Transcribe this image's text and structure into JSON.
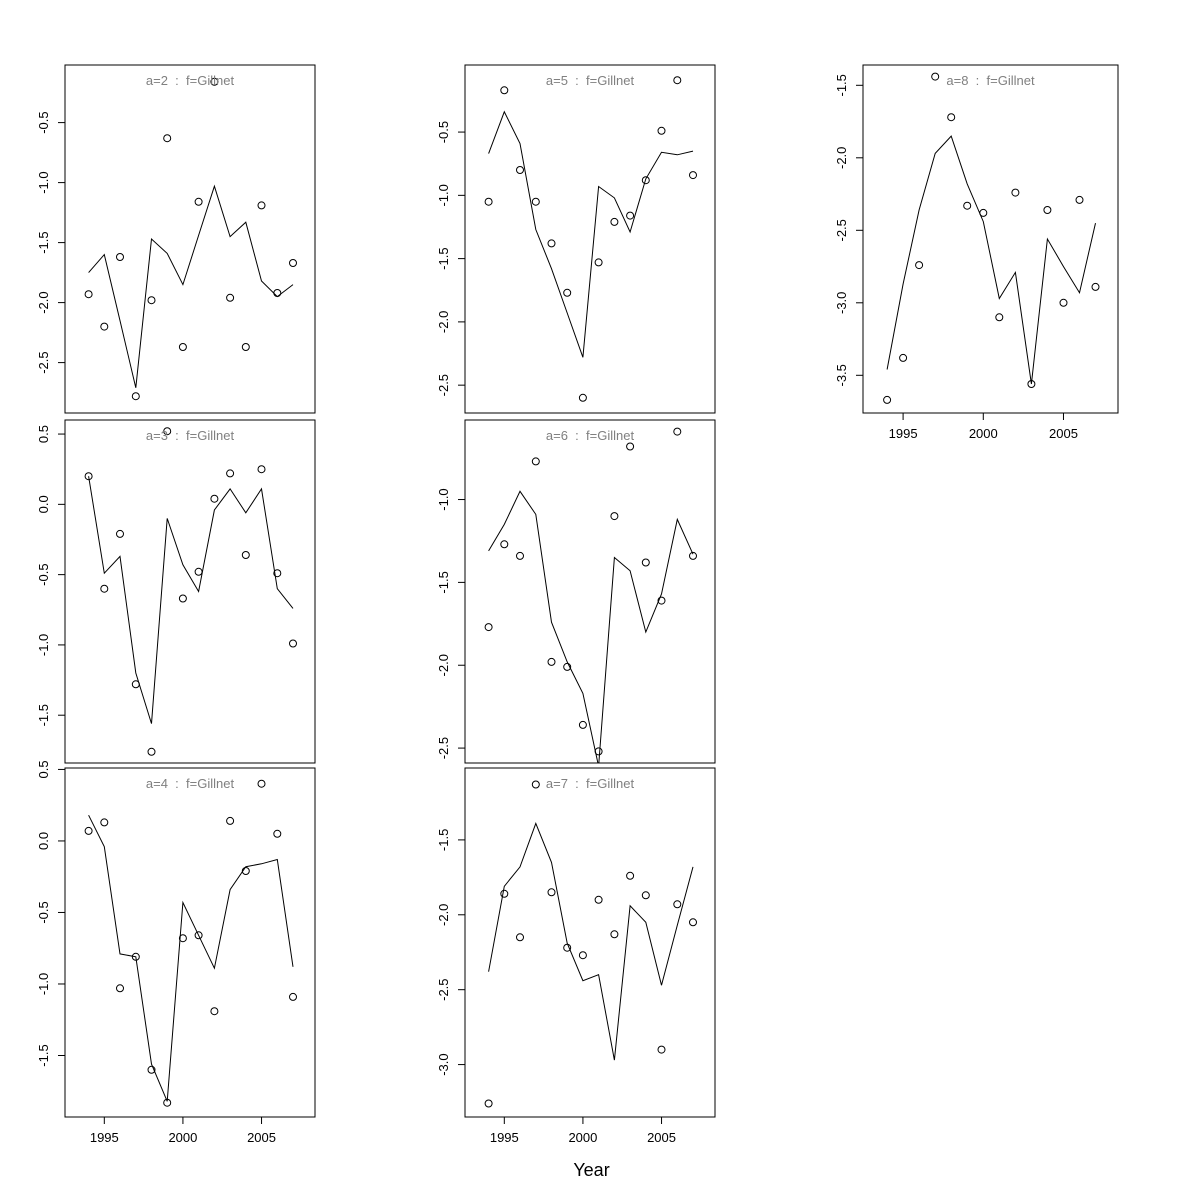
{
  "figure": {
    "x_axis": {
      "label": "Year",
      "ticks": [
        1995,
        2000,
        2005
      ],
      "lim": [
        1992.5,
        2008.4
      ]
    },
    "years": [
      1994,
      1995,
      1996,
      1997,
      1998,
      1999,
      2000,
      2001,
      2002,
      2003,
      2004,
      2005,
      2006,
      2007
    ],
    "colors": {
      "title": "#808080",
      "axis": "#000000",
      "line": "#000000",
      "point_stroke": "#000000",
      "background": "#ffffff"
    }
  },
  "chart_data": [
    {
      "id": "a2",
      "type": "line",
      "title": "a=2  :  f=Gillnet",
      "row": 0,
      "col": 0,
      "show_x_axis": false,
      "ylim": [
        -2.92,
        -0.02
      ],
      "yticks": [
        "-0.5",
        "-1.0",
        "-1.5",
        "-2.0",
        "-2.5"
      ],
      "series": [
        {
          "name": "observed",
          "values": [
            -1.93,
            -2.2,
            -1.62,
            -2.78,
            -1.98,
            -0.63,
            -2.37,
            -1.16,
            -0.16,
            -1.96,
            -2.37,
            -1.19,
            -1.92,
            -1.67
          ]
        },
        {
          "name": "fitted",
          "values": [
            -1.75,
            -1.6,
            -2.15,
            -2.71,
            -1.47,
            -1.59,
            -1.85,
            -1.44,
            -1.03,
            -1.45,
            -1.33,
            -1.82,
            -1.95,
            -1.85
          ]
        }
      ]
    },
    {
      "id": "a3",
      "type": "line",
      "title": "a=3  :  f=Gillnet",
      "row": 1,
      "col": 0,
      "show_x_axis": false,
      "ylim": [
        -1.84,
        0.6
      ],
      "yticks": [
        "0.5",
        "0.0",
        "-0.5",
        "-1.0",
        "-1.5"
      ],
      "series": [
        {
          "name": "observed",
          "values": [
            0.2,
            -0.6,
            -0.21,
            -1.28,
            -1.76,
            0.52,
            -0.67,
            -0.48,
            0.04,
            0.22,
            -0.36,
            0.25,
            -0.49,
            -0.99
          ]
        },
        {
          "name": "fitted",
          "values": [
            0.2,
            -0.49,
            -0.37,
            -1.2,
            -1.56,
            -0.1,
            -0.43,
            -0.62,
            -0.04,
            0.11,
            -0.06,
            0.11,
            -0.6,
            -0.74
          ]
        }
      ]
    },
    {
      "id": "a4",
      "type": "line",
      "title": "a=4  :  f=Gillnet",
      "row": 2,
      "col": 0,
      "show_x_axis": true,
      "ylim": [
        -1.93,
        0.51
      ],
      "yticks": [
        "0.5",
        "0.0",
        "-0.5",
        "-1.0",
        "-1.5"
      ],
      "series": [
        {
          "name": "observed",
          "values": [
            0.07,
            0.13,
            -1.03,
            -0.81,
            -1.6,
            -1.83,
            -0.68,
            -0.66,
            -1.19,
            0.14,
            -0.21,
            0.4,
            0.05,
            -1.09
          ]
        },
        {
          "name": "fitted",
          "values": [
            0.18,
            -0.04,
            -0.79,
            -0.81,
            -1.56,
            -1.82,
            -0.43,
            -0.66,
            -0.89,
            -0.34,
            -0.18,
            -0.16,
            -0.13,
            -0.88
          ]
        }
      ]
    },
    {
      "id": "a5",
      "type": "line",
      "title": "a=5  :  f=Gillnet",
      "row": 0,
      "col": 1,
      "show_x_axis": false,
      "ylim": [
        -2.72,
        0.03
      ],
      "yticks": [
        "-0.5",
        "-1.0",
        "-1.5",
        "-2.0",
        "-2.5"
      ],
      "series": [
        {
          "name": "observed",
          "values": [
            -1.05,
            -0.17,
            -0.8,
            -1.05,
            -1.38,
            -1.77,
            -2.6,
            -1.53,
            -1.21,
            -1.16,
            -0.88,
            -0.49,
            -0.09,
            -0.84
          ]
        },
        {
          "name": "fitted",
          "values": [
            -0.67,
            -0.34,
            -0.59,
            -1.27,
            -1.58,
            -1.93,
            -2.28,
            -0.93,
            -1.02,
            -1.29,
            -0.87,
            -0.66,
            -0.68,
            -0.65
          ]
        }
      ]
    },
    {
      "id": "a6",
      "type": "line",
      "title": "a=6  :  f=Gillnet",
      "row": 1,
      "col": 1,
      "show_x_axis": false,
      "ylim": [
        -2.59,
        -0.52
      ],
      "yticks": [
        "-1.0",
        "-1.5",
        "-2.0",
        "-2.5"
      ],
      "series": [
        {
          "name": "observed",
          "values": [
            -1.77,
            -1.27,
            -1.34,
            -0.77,
            -1.98,
            -2.01,
            -2.36,
            -2.52,
            -1.1,
            -0.68,
            -1.38,
            -1.61,
            -0.59,
            -1.34
          ]
        },
        {
          "name": "fitted",
          "values": [
            -1.31,
            -1.15,
            -0.95,
            -1.09,
            -1.74,
            -1.98,
            -2.17,
            -2.61,
            -1.35,
            -1.43,
            -1.8,
            -1.57,
            -1.12,
            -1.33
          ]
        }
      ]
    },
    {
      "id": "a7",
      "type": "line",
      "title": "a=7  :  f=Gillnet",
      "row": 2,
      "col": 1,
      "show_x_axis": true,
      "ylim": [
        -3.35,
        -1.02
      ],
      "yticks": [
        "-1.5",
        "-2.0",
        "-2.5",
        "-3.0"
      ],
      "series": [
        {
          "name": "observed",
          "values": [
            -3.26,
            -1.86,
            -2.15,
            -1.13,
            -1.85,
            -2.22,
            -2.27,
            -1.9,
            -2.13,
            -1.74,
            -1.87,
            -2.9,
            -1.93,
            -2.05
          ]
        },
        {
          "name": "fitted",
          "values": [
            -2.38,
            -1.81,
            -1.68,
            -1.39,
            -1.65,
            -2.19,
            -2.44,
            -2.4,
            -2.97,
            -1.94,
            -2.05,
            -2.47,
            -2.07,
            -1.68
          ]
        }
      ]
    },
    {
      "id": "a8",
      "type": "line",
      "title": "a=8  :  f=Gillnet",
      "row": 0,
      "col": 2,
      "show_x_axis": true,
      "ylim": [
        -3.76,
        -1.36
      ],
      "yticks": [
        "-1.5",
        "-2.0",
        "-2.5",
        "-3.0",
        "-3.5"
      ],
      "series": [
        {
          "name": "observed",
          "values": [
            -3.67,
            -3.38,
            -2.74,
            -1.44,
            -1.72,
            -2.33,
            -2.38,
            -3.1,
            -2.24,
            -3.56,
            -2.36,
            -3.0,
            -2.29,
            -2.89
          ]
        },
        {
          "name": "fitted",
          "values": [
            -3.46,
            -2.87,
            -2.36,
            -1.97,
            -1.85,
            -2.18,
            -2.44,
            -2.97,
            -2.79,
            -3.56,
            -2.56,
            -2.75,
            -2.93,
            -2.45
          ]
        }
      ]
    }
  ]
}
